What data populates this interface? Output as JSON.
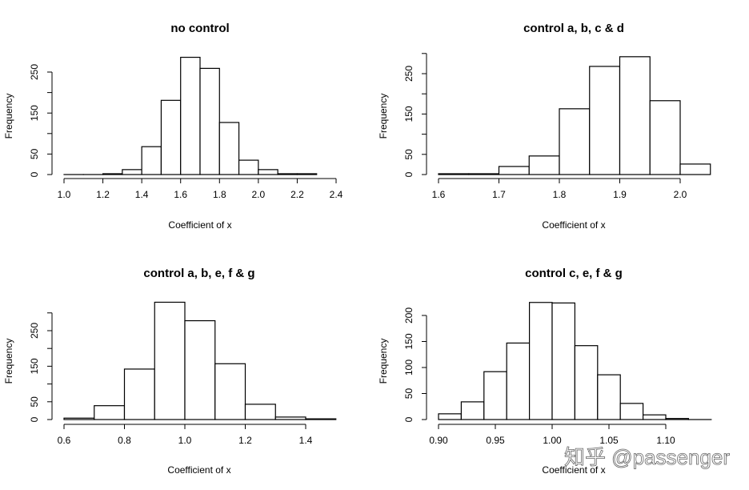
{
  "watermark": "知乎 @passenger",
  "chart_data": [
    {
      "type": "bar",
      "title": "no control",
      "xlabel": "Coefficient of x",
      "ylabel": "Frequency",
      "bin_edges": [
        1.0,
        1.1,
        1.2,
        1.3,
        1.4,
        1.5,
        1.6,
        1.7,
        1.8,
        1.9,
        2.0,
        2.1,
        2.2,
        2.3
      ],
      "values": [
        0,
        0,
        2,
        12,
        68,
        181,
        286,
        259,
        127,
        35,
        12,
        2,
        2
      ],
      "xticks": [
        1.0,
        1.2,
        1.4,
        1.6,
        1.8,
        2.0,
        2.2,
        2.4
      ],
      "xtick_labels": [
        "1.0",
        "1.2",
        "1.4",
        "1.6",
        "1.8",
        "2.0",
        "2.2",
        "2.4"
      ],
      "yticks": [
        0,
        50,
        100,
        150,
        200,
        250
      ],
      "ytick_labels": [
        "0",
        "50",
        "",
        "150",
        "",
        "250"
      ],
      "xlim": [
        1.0,
        2.4
      ],
      "ylim": [
        0,
        300
      ]
    },
    {
      "type": "bar",
      "title": "control a, b, c & d",
      "xlabel": "Coefficient of x",
      "ylabel": "Frequency",
      "bin_edges": [
        1.6,
        1.65,
        1.7,
        1.75,
        1.8,
        1.85,
        1.9,
        1.95,
        2.0,
        2.05
      ],
      "values": [
        2,
        2,
        20,
        46,
        163,
        268,
        292,
        183,
        26
      ],
      "xticks": [
        1.6,
        1.7,
        1.8,
        1.9,
        2.0
      ],
      "xtick_labels": [
        "1.6",
        "1.7",
        "1.8",
        "1.9",
        "2.0"
      ],
      "yticks": [
        0,
        50,
        100,
        150,
        200,
        250,
        300
      ],
      "ytick_labels": [
        "0",
        "50",
        "",
        "150",
        "",
        "250",
        ""
      ],
      "xlim": [
        1.6,
        2.05
      ],
      "ylim": [
        0,
        300
      ]
    },
    {
      "type": "bar",
      "title": "control a, b, e, f & g",
      "xlabel": "Coefficient of x",
      "ylabel": "Frequency",
      "bin_edges": [
        0.6,
        0.7,
        0.8,
        0.9,
        1.0,
        1.1,
        1.2,
        1.3,
        1.4,
        1.5
      ],
      "values": [
        4,
        39,
        142,
        330,
        278,
        157,
        43,
        7,
        2
      ],
      "xticks": [
        0.6,
        0.8,
        1.0,
        1.2,
        1.4
      ],
      "xtick_labels": [
        "0.6",
        "0.8",
        "1.0",
        "1.2",
        "1.4"
      ],
      "yticks": [
        0,
        50,
        100,
        150,
        200,
        250,
        300
      ],
      "ytick_labels": [
        "0",
        "50",
        "",
        "150",
        "",
        "250",
        ""
      ],
      "xlim": [
        0.6,
        1.5
      ],
      "ylim": [
        0,
        330
      ]
    },
    {
      "type": "bar",
      "title": "control c, e, f & g",
      "xlabel": "Coefficient of x",
      "ylabel": "Frequency",
      "bin_edges": [
        0.9,
        0.92,
        0.94,
        0.96,
        0.98,
        1.0,
        1.02,
        1.04,
        1.06,
        1.08,
        1.1,
        1.12,
        1.14
      ],
      "values": [
        11,
        34,
        92,
        147,
        225,
        224,
        142,
        86,
        31,
        9,
        2,
        0
      ],
      "xticks": [
        0.9,
        0.95,
        1.0,
        1.05,
        1.1
      ],
      "xtick_labels": [
        "0.90",
        "0.95",
        "1.00",
        "1.05",
        "1.10"
      ],
      "yticks": [
        0,
        50,
        100,
        150,
        200
      ],
      "ytick_labels": [
        "0",
        "50",
        "100",
        "150",
        "200"
      ],
      "xlim": [
        0.9,
        1.14
      ],
      "ylim": [
        0,
        225
      ]
    }
  ]
}
